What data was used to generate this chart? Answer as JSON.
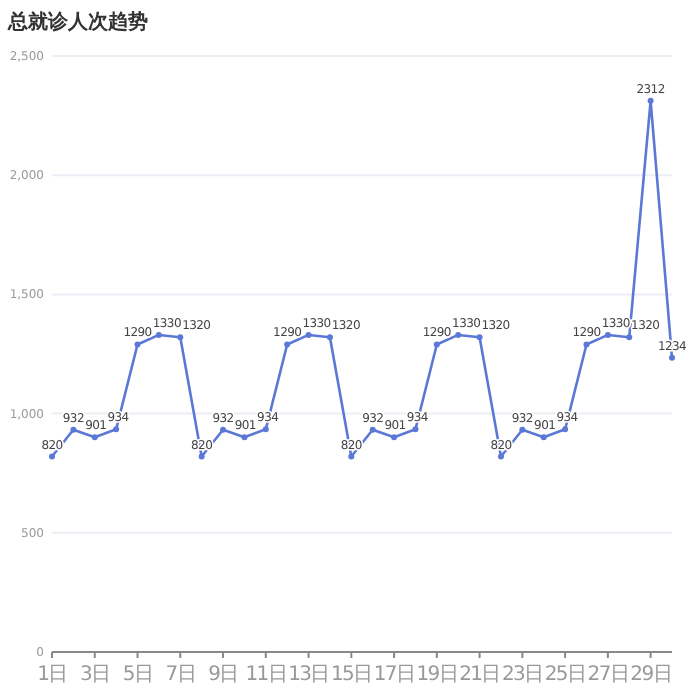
{
  "chart_data": {
    "type": "line",
    "title": "总就诊人次趋势",
    "categories": [
      "1日",
      null,
      "3日",
      null,
      "5日",
      null,
      "7日",
      null,
      "9日",
      null,
      "11日",
      null,
      "13日",
      null,
      "15日",
      null,
      "17日",
      null,
      "19日",
      null,
      "21日",
      null,
      "23日",
      null,
      "25日",
      null,
      "27日",
      null,
      "29日",
      null
    ],
    "series": [
      {
        "color": "#5b78d6",
        "values": [
          820,
          932,
          901,
          934,
          1290,
          1330,
          1320,
          820,
          932,
          901,
          934,
          1290,
          1330,
          1320,
          820,
          932,
          901,
          934,
          1290,
          1330,
          1320,
          820,
          932,
          901,
          934,
          1290,
          1330,
          1320,
          2312,
          1234
        ]
      }
    ],
    "ylim": [
      0,
      2500
    ],
    "yticks": [
      {
        "value": 0,
        "label": "0"
      },
      {
        "value": 500,
        "label": "500"
      },
      {
        "value": 1000,
        "label": "1,000"
      },
      {
        "value": 1500,
        "label": "1,500"
      },
      {
        "value": 2000,
        "label": "2,000"
      },
      {
        "value": 2500,
        "label": "2,500"
      }
    ],
    "grid": "y",
    "data_labels": true,
    "marker": "circle",
    "line_style": "solid"
  }
}
